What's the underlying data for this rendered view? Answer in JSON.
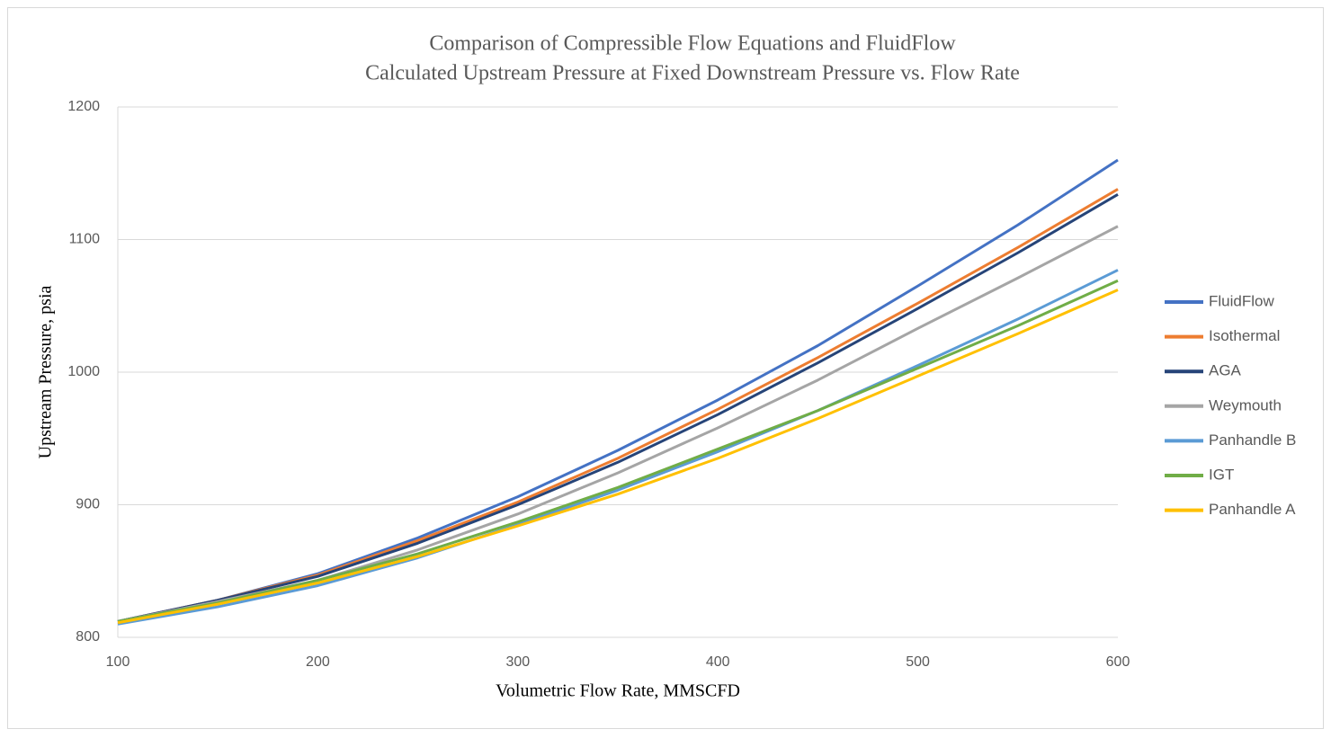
{
  "chart_data": {
    "type": "line",
    "title": "Comparison of Compressible Flow Equations and FluidFlow",
    "subtitle": "Calculated Upstream Pressure at Fixed Downstream Pressure vs. Flow Rate",
    "x_label": "Volumetric Flow Rate, MMSCFD",
    "y_label": "Upstream Pressure, psia",
    "x": [
      100,
      150,
      200,
      250,
      300,
      350,
      400,
      450,
      500,
      550,
      600
    ],
    "series": [
      {
        "name": "FluidFlow",
        "color": "#4472c4",
        "values": [
          812,
          828,
          848,
          875,
          906,
          941,
          979,
          1020,
          1065,
          1111,
          1160
        ]
      },
      {
        "name": "Isothermal",
        "color": "#ed7d31",
        "values": [
          812,
          828,
          847,
          873,
          902,
          935,
          972,
          1011,
          1052,
          1094,
          1138
        ]
      },
      {
        "name": "AGA",
        "color": "#264478",
        "values": [
          812,
          828,
          846,
          871,
          900,
          932,
          968,
          1007,
          1048,
          1090,
          1134
        ]
      },
      {
        "name": "Weymouth",
        "color": "#a5a5a5",
        "values": [
          812,
          827,
          843,
          866,
          893,
          924,
          958,
          994,
          1033,
          1071,
          1110
        ]
      },
      {
        "name": "Panhandle B",
        "color": "#5b9bd5",
        "values": [
          810,
          823,
          839,
          860,
          885,
          911,
          940,
          971,
          1005,
          1040,
          1077
        ]
      },
      {
        "name": "IGT",
        "color": "#70ad47",
        "values": [
          812,
          826,
          843,
          863,
          887,
          913,
          942,
          971,
          1003,
          1035,
          1069
        ]
      },
      {
        "name": "Panhandle A",
        "color": "#ffc000",
        "values": [
          811,
          825,
          841,
          861,
          884,
          908,
          935,
          965,
          997,
          1029,
          1062
        ]
      }
    ],
    "xlim": [
      100,
      600
    ],
    "xticks": [
      100,
      200,
      300,
      400,
      500,
      600
    ],
    "ylim": [
      800,
      1200
    ],
    "yticks": [
      800,
      900,
      1000,
      1100,
      1200
    ],
    "grid": true,
    "legend": "right"
  }
}
